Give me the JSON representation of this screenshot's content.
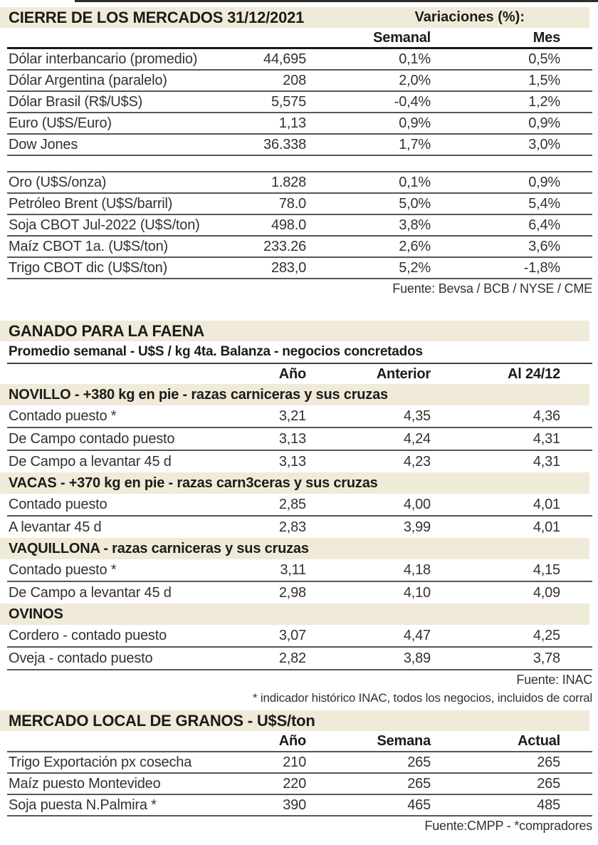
{
  "colors": {
    "band_background": "#f0ead9",
    "rule_gray": "#55565a",
    "rule_heavy": "#1b1a18",
    "text_dark": "#1d1b19",
    "text_body": "#343230"
  },
  "markets": {
    "title": "CIERRE DE LOS MERCADOS 31/12/2021",
    "variations_label": "Variaciones (%):",
    "col_headers": [
      "Semanal",
      "Mes"
    ],
    "rows_top": [
      {
        "label": "Dólar interbancario (promedio)",
        "value": "44,695",
        "semanal": "0,1%",
        "mes": "0,5%"
      },
      {
        "label": "Dólar Argentina (paralelo)",
        "value": "208",
        "semanal": "2,0%",
        "mes": "1,5%"
      },
      {
        "label": "Dólar Brasil (R$/U$S)",
        "value": "5,575",
        "semanal": "-0,4%",
        "mes": "1,2%"
      },
      {
        "label": "Euro (U$S/Euro)",
        "value": "1,13",
        "semanal": "0,9%",
        "mes": "0,9%"
      },
      {
        "label": "Dow Jones",
        "value": "36.338",
        "semanal": "1,7%",
        "mes": "3,0%"
      }
    ],
    "rows_commodities": [
      {
        "label": "Oro (U$S/onza)",
        "value": "1.828",
        "semanal": "0,1%",
        "mes": "0,9%"
      },
      {
        "label": "Petróleo Brent (U$S/barril)",
        "value": "78.0",
        "semanal": "5,0%",
        "mes": "5,4%"
      },
      {
        "label": "Soja CBOT Jul-2022 (U$S/ton)",
        "value": "498.0",
        "semanal": "3,8%",
        "mes": "6,4%"
      },
      {
        "label": "Maíz CBOT 1a. (U$S/ton)",
        "value": "233.26",
        "semanal": "2,6%",
        "mes": "3,6%"
      },
      {
        "label": "Trigo CBOT dic (U$S/ton)",
        "value": "283,0",
        "semanal": "5,2%",
        "mes": "-1,8%"
      }
    ],
    "source": "Fuente: Bevsa / BCB / NYSE / CME"
  },
  "cattle": {
    "title": "GANADO PARA LA FAENA",
    "subtitle": "Promedio semanal - U$S / kg 4ta. Balanza - negocios concretados",
    "col_headers": [
      "Año",
      "Anterior",
      "Al 24/12"
    ],
    "groups": [
      {
        "label": "NOVILLO - +380 kg en pie - razas carniceras y sus cruzas",
        "rows": [
          {
            "label": "Contado puesto *",
            "anio": "3,21",
            "anterior": "4,35",
            "al2412": "4,36"
          },
          {
            "label": "De Campo contado puesto",
            "anio": "3,13",
            "anterior": "4,24",
            "al2412": "4,31"
          },
          {
            "label": "De Campo a levantar 45 d",
            "anio": "3,13",
            "anterior": "4,23",
            "al2412": "4,31"
          }
        ]
      },
      {
        "label": "VACAS - +370 kg en pie - razas carn3ceras y sus cruzas",
        "rows": [
          {
            "label": "Contado puesto",
            "anio": "2,85",
            "anterior": "4,00",
            "al2412": "4,01"
          },
          {
            "label": "A levantar 45 d",
            "anio": "2,83",
            "anterior": "3,99",
            "al2412": "4,01"
          }
        ]
      },
      {
        "label": "VAQUILLONA - razas carniceras y sus cruzas",
        "rows": [
          {
            "label": "Contado puesto *",
            "anio": "3,11",
            "anterior": "4,18",
            "al2412": "4,15"
          },
          {
            "label": "De Campo a levantar 45 d",
            "anio": "2,98",
            "anterior": "4,10",
            "al2412": "4,09"
          }
        ]
      },
      {
        "label": "OVINOS",
        "rows": [
          {
            "label": "Cordero - contado puesto",
            "anio": "3,07",
            "anterior": "4,47",
            "al2412": "4,25"
          },
          {
            "label": "Oveja - contado puesto",
            "anio": "2,82",
            "anterior": "3,89",
            "al2412": "3,78"
          }
        ]
      }
    ],
    "source": "Fuente: INAC",
    "footnote": "* indicador histórico INAC, todos los negocios, incluidos de corral"
  },
  "grains": {
    "title": "MERCADO LOCAL DE GRANOS - U$S/ton",
    "col_headers": [
      "Año",
      "Semana",
      "Actual"
    ],
    "rows": [
      {
        "label": "Trigo Exportación px cosecha",
        "anio": "210",
        "semana": "265",
        "actual": "265"
      },
      {
        "label": "Maíz puesto Montevideo",
        "anio": "220",
        "semana": "265",
        "actual": "265"
      },
      {
        "label": "Soja puesta N.Palmira *",
        "anio": "390",
        "semana": "465",
        "actual": "485"
      }
    ],
    "source": "Fuente:CMPP - *compradores"
  }
}
